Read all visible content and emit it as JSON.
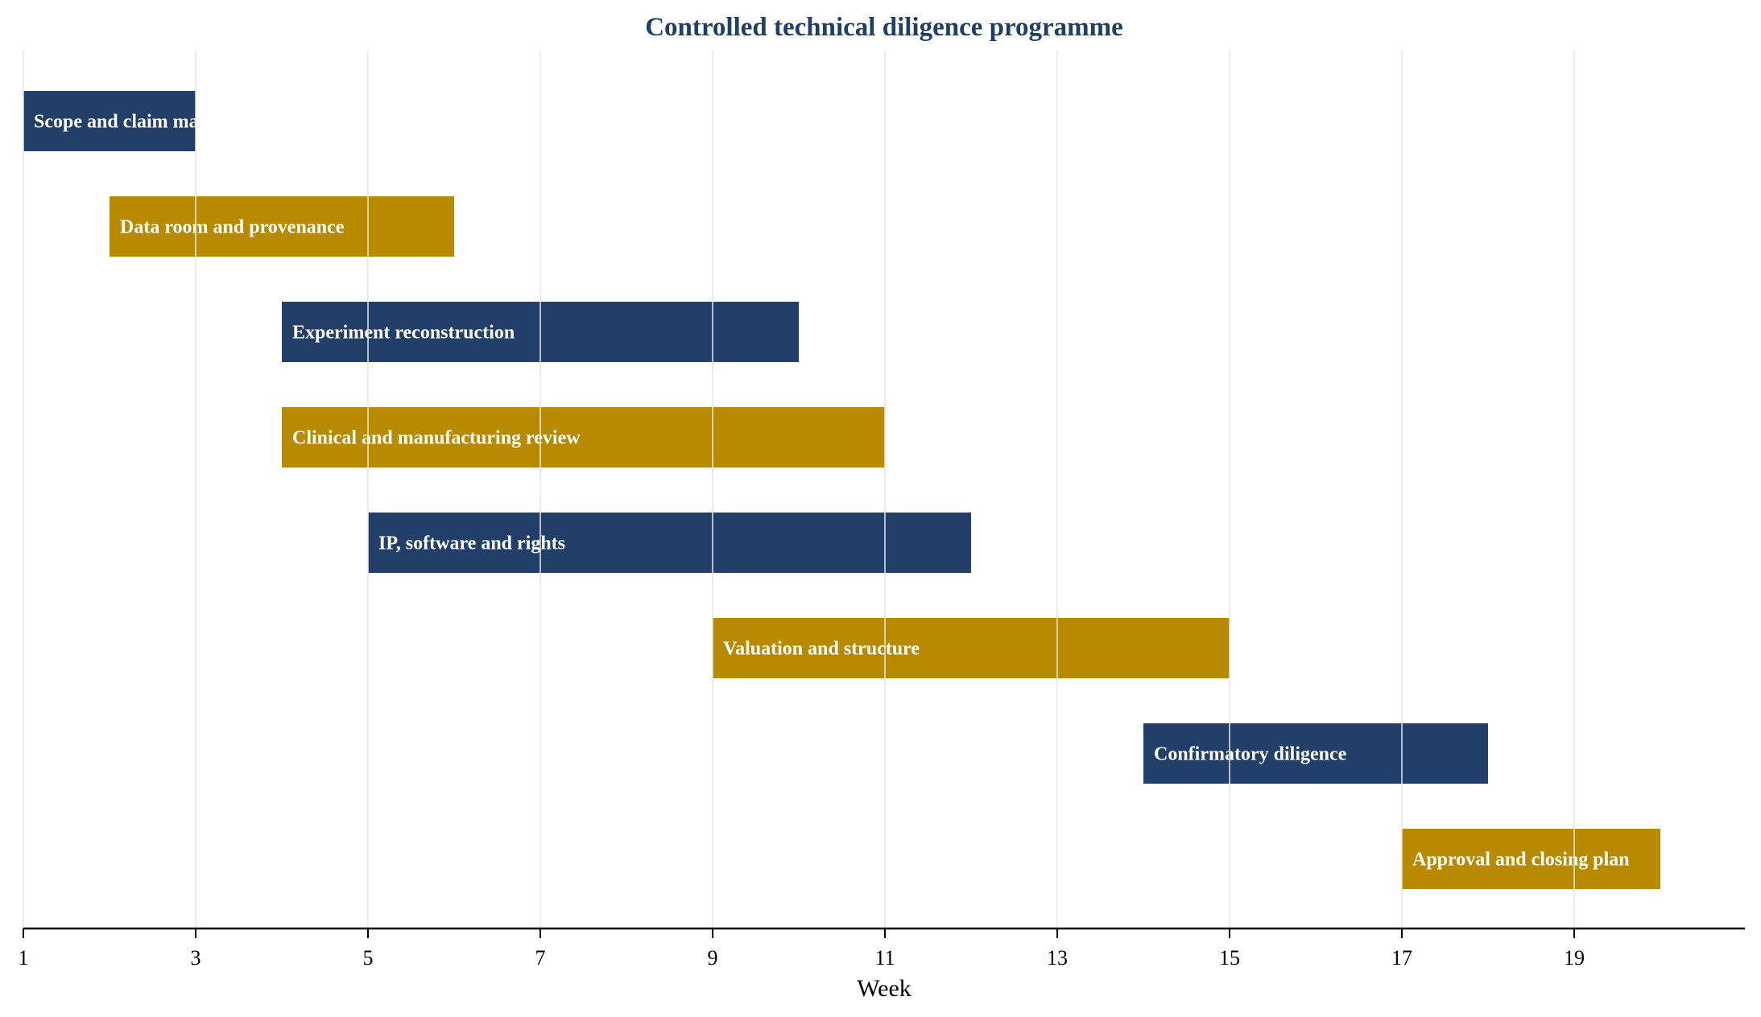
{
  "chart_data": {
    "type": "gantt",
    "title": "Controlled technical diligence programme",
    "xlabel": "Week",
    "ylabel": "",
    "xlim": [
      1,
      21
    ],
    "xticks": [
      1,
      3,
      5,
      7,
      9,
      11,
      13,
      15,
      17,
      19
    ],
    "grid": true,
    "legend": "none",
    "colors": {
      "title": "#1f3f66",
      "navy": "#213f69",
      "gold": "#b88a00"
    },
    "tasks": [
      {
        "label": "Scope and claim map",
        "start": 1,
        "end": 3,
        "color": "#213f69"
      },
      {
        "label": "Data room and provenance",
        "start": 2,
        "end": 6,
        "color": "#b88a00"
      },
      {
        "label": "Experiment reconstruction",
        "start": 4,
        "end": 10,
        "color": "#213f69"
      },
      {
        "label": "Clinical and manufacturing review",
        "start": 4,
        "end": 11,
        "color": "#b88a00"
      },
      {
        "label": "IP, software and rights",
        "start": 5,
        "end": 12,
        "color": "#213f69"
      },
      {
        "label": "Valuation and structure",
        "start": 9,
        "end": 15,
        "color": "#b88a00"
      },
      {
        "label": "Confirmatory diligence",
        "start": 14,
        "end": 18,
        "color": "#213f69"
      },
      {
        "label": "Approval and closing plan",
        "start": 17,
        "end": 20,
        "color": "#b88a00"
      }
    ]
  }
}
